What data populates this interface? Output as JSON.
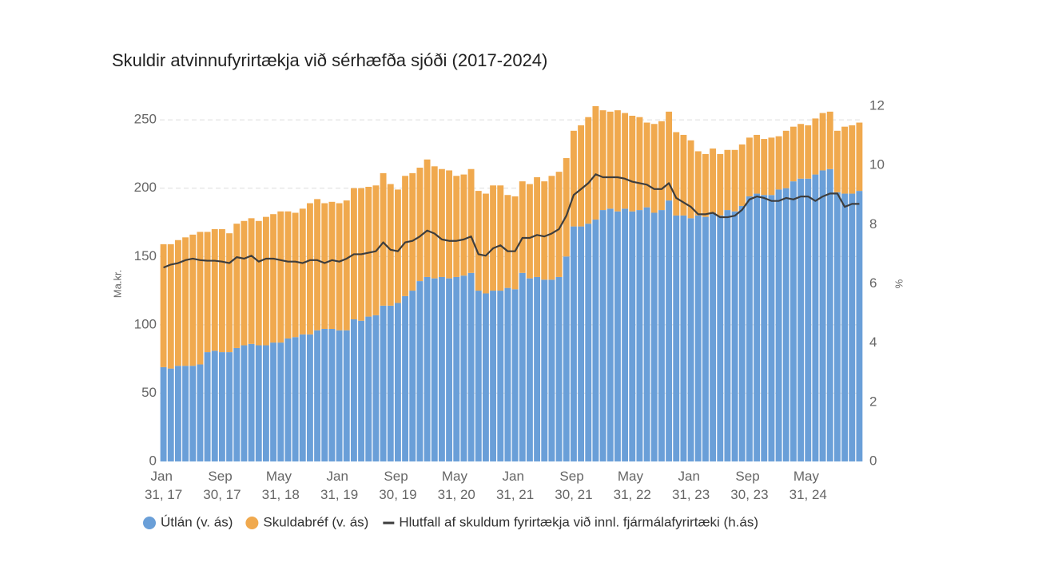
{
  "chart_data": {
    "type": "stacked-bar-line",
    "title": "Skuldir atvinnufyrirtækja við sérhæfða sjóði (2017-2024)",
    "y_label": "Ma.kr.",
    "y2_label": "%",
    "categories": [
      "Jan 31, 17",
      null,
      null,
      null,
      null,
      null,
      null,
      null,
      "Sep 30, 17",
      null,
      null,
      null,
      null,
      null,
      null,
      null,
      "May 31, 18",
      null,
      null,
      null,
      null,
      null,
      null,
      null,
      "Jan 31, 19",
      null,
      null,
      null,
      null,
      null,
      null,
      null,
      "Sep 30, 19",
      null,
      null,
      null,
      null,
      null,
      null,
      null,
      "May 31, 20",
      null,
      null,
      null,
      null,
      null,
      null,
      null,
      "Jan 31, 21",
      null,
      null,
      null,
      null,
      null,
      null,
      null,
      "Sep 30, 21",
      null,
      null,
      null,
      null,
      null,
      null,
      null,
      "May 31, 22",
      null,
      null,
      null,
      null,
      null,
      null,
      null,
      "Jan 31, 23",
      null,
      null,
      null,
      null,
      null,
      null,
      null,
      "Sep 30, 23",
      null,
      null,
      null,
      null,
      null,
      null,
      null,
      "May 31, 24",
      null,
      null,
      null,
      null,
      null,
      null,
      null
    ],
    "series": [
      {
        "name": "Útlán (v. ás)",
        "color": "#6a9fd8",
        "kind": "bar",
        "axis": "y",
        "values": [
          69,
          68,
          70,
          70,
          70,
          71,
          80,
          81,
          80,
          80,
          83,
          85,
          86,
          85,
          85,
          87,
          87,
          90,
          91,
          93,
          93,
          96,
          97,
          97,
          96,
          96,
          104,
          103,
          106,
          107,
          114,
          114,
          116,
          121,
          125,
          132,
          135,
          134,
          135,
          134,
          135,
          136,
          138,
          125,
          123,
          125,
          125,
          127,
          126,
          138,
          134,
          135,
          133,
          133,
          135,
          150,
          172,
          172,
          174,
          177,
          184,
          185,
          183,
          185,
          183,
          184,
          186,
          182,
          184,
          191,
          180,
          180,
          178,
          180,
          179,
          182,
          180,
          184,
          183,
          187,
          194,
          196,
          195,
          195,
          199,
          200,
          205,
          207,
          207,
          210,
          213,
          214,
          197,
          196,
          196,
          198
        ]
      },
      {
        "name": "Skuldabréf (v. ás)",
        "color": "#f0a94e",
        "kind": "bar",
        "axis": "y",
        "values": [
          90,
          91,
          92,
          94,
          96,
          97,
          88,
          89,
          90,
          87,
          91,
          91,
          92,
          91,
          94,
          94,
          96,
          93,
          91,
          92,
          96,
          96,
          92,
          93,
          93,
          95,
          96,
          97,
          95,
          95,
          97,
          89,
          83,
          88,
          86,
          83,
          86,
          82,
          79,
          79,
          74,
          74,
          76,
          73,
          73,
          77,
          77,
          68,
          68,
          67,
          69,
          73,
          72,
          76,
          77,
          72,
          70,
          74,
          78,
          83,
          73,
          71,
          74,
          70,
          70,
          68,
          62,
          65,
          65,
          65,
          61,
          59,
          57,
          47,
          46,
          47,
          45,
          44,
          45,
          45,
          43,
          43,
          41,
          42,
          39,
          42,
          40,
          40,
          39,
          41,
          42,
          42,
          45,
          49,
          50,
          50
        ]
      },
      {
        "name": "Hlutfall af skuldum fyrirtækja við innl. fjármálafyrirtæki (h.ás)",
        "color": "#3d3d3d",
        "kind": "line",
        "axis": "y2",
        "values": [
          6.55,
          6.65,
          6.7,
          6.8,
          6.85,
          6.8,
          6.78,
          6.78,
          6.75,
          6.7,
          6.9,
          6.85,
          6.95,
          6.75,
          6.85,
          6.85,
          6.8,
          6.75,
          6.75,
          6.7,
          6.8,
          6.8,
          6.7,
          6.8,
          6.75,
          6.85,
          7.0,
          7.0,
          7.05,
          7.1,
          7.4,
          7.15,
          7.1,
          7.4,
          7.45,
          7.6,
          7.8,
          7.7,
          7.5,
          7.45,
          7.45,
          7.5,
          7.6,
          7.0,
          6.95,
          7.2,
          7.3,
          7.1,
          7.1,
          7.55,
          7.55,
          7.65,
          7.6,
          7.7,
          7.85,
          8.3,
          9.0,
          9.2,
          9.4,
          9.7,
          9.6,
          9.6,
          9.6,
          9.55,
          9.45,
          9.4,
          9.35,
          9.2,
          9.2,
          9.4,
          8.9,
          8.75,
          8.6,
          8.35,
          8.35,
          8.4,
          8.25,
          8.25,
          8.3,
          8.5,
          8.85,
          8.95,
          8.9,
          8.8,
          8.8,
          8.9,
          8.85,
          8.95,
          8.95,
          8.8,
          8.95,
          9.05,
          9.05,
          8.6,
          8.7,
          8.7
        ]
      }
    ],
    "ylim": [
      0,
      260
    ],
    "yticks": [
      0,
      50,
      100,
      150,
      200,
      250
    ],
    "y2lim": [
      0,
      12
    ],
    "y2ticks": [
      0,
      2,
      4,
      6,
      8,
      10,
      12
    ],
    "grid": true,
    "legend": "bottom"
  }
}
